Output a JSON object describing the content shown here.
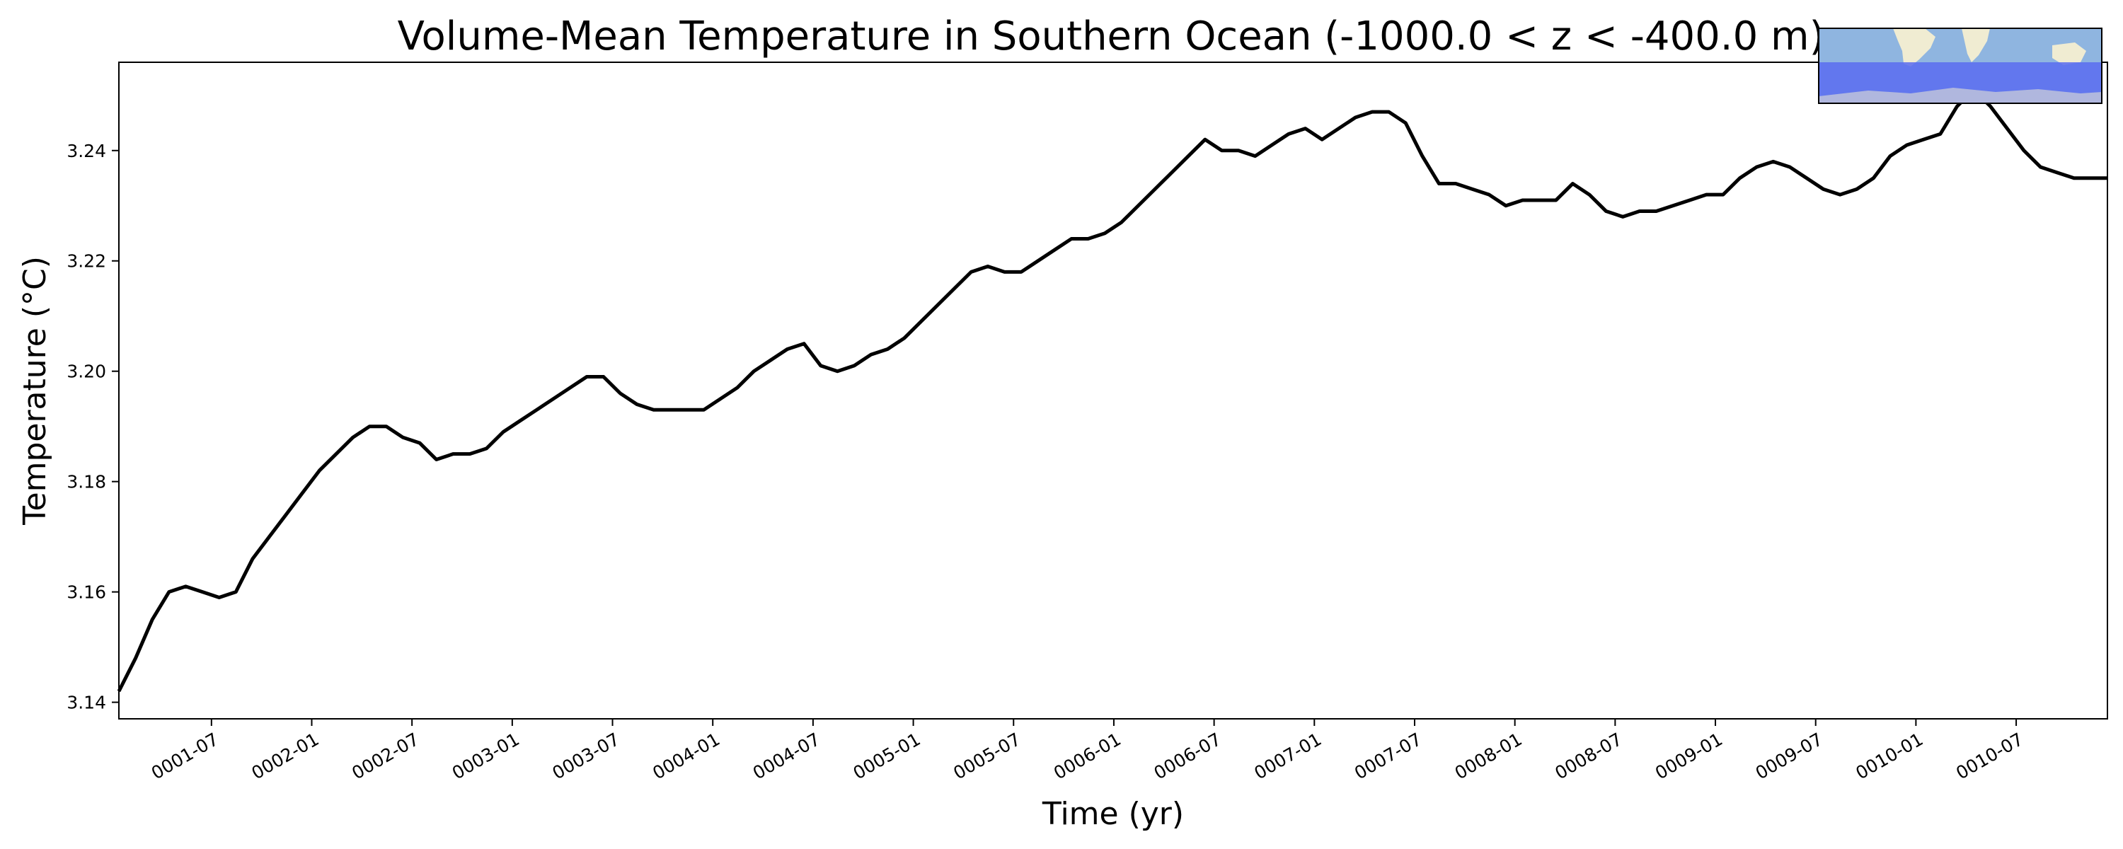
{
  "chart_data": {
    "type": "line",
    "title": "Volume-Mean Temperature in Southern Ocean (-1000.0 < z < -400.0 m)",
    "xlabel": "Time (yr)",
    "ylabel": "Temperature (°C)",
    "xlim": [
      "0001-01-15",
      "0010-12-15"
    ],
    "ylim": [
      3.137,
      3.256
    ],
    "yticks": [
      3.14,
      3.16,
      3.18,
      3.2,
      3.22,
      3.24
    ],
    "ytick_labels": [
      "3.14",
      "3.16",
      "3.18",
      "3.20",
      "3.22",
      "3.24"
    ],
    "xticks": [
      "0001-07",
      "0002-01",
      "0002-07",
      "0003-01",
      "0003-07",
      "0004-01",
      "0004-07",
      "0005-01",
      "0005-07",
      "0006-01",
      "0006-07",
      "0007-01",
      "0007-07",
      "0008-01",
      "0008-07",
      "0009-01",
      "0009-07",
      "0010-01",
      "0010-07"
    ],
    "grid": false,
    "legend": "none",
    "line_color": "#000000",
    "series": [
      {
        "x": [
          "0001-01",
          "0001-02",
          "0001-03",
          "0001-04",
          "0001-05",
          "0001-06",
          "0001-07",
          "0001-08",
          "0001-09",
          "0001-10",
          "0001-11",
          "0001-12",
          "0002-01",
          "0002-02",
          "0002-03",
          "0002-04",
          "0002-05",
          "0002-06",
          "0002-07",
          "0002-08",
          "0002-09",
          "0002-10",
          "0002-11",
          "0002-12",
          "0003-01",
          "0003-02",
          "0003-03",
          "0003-04",
          "0003-05",
          "0003-06",
          "0003-07",
          "0003-08",
          "0003-09",
          "0003-10",
          "0003-11",
          "0003-12",
          "0004-01",
          "0004-02",
          "0004-03",
          "0004-04",
          "0004-05",
          "0004-06",
          "0004-07",
          "0004-08",
          "0004-09",
          "0004-10",
          "0004-11",
          "0004-12",
          "0005-01",
          "0005-02",
          "0005-03",
          "0005-04",
          "0005-05",
          "0005-06",
          "0005-07",
          "0005-08",
          "0005-09",
          "0005-10",
          "0005-11",
          "0005-12",
          "0006-01",
          "0006-02",
          "0006-03",
          "0006-04",
          "0006-05",
          "0006-06",
          "0006-07",
          "0006-08",
          "0006-09",
          "0006-10",
          "0006-11",
          "0006-12",
          "0007-01",
          "0007-02",
          "0007-03",
          "0007-04",
          "0007-05",
          "0007-06",
          "0007-07",
          "0007-08",
          "0007-09",
          "0007-10",
          "0007-11",
          "0007-12",
          "0008-01",
          "0008-02",
          "0008-03",
          "0008-04",
          "0008-05",
          "0008-06",
          "0008-07",
          "0008-08",
          "0008-09",
          "0008-10",
          "0008-11",
          "0008-12",
          "0009-01",
          "0009-02",
          "0009-03",
          "0009-04",
          "0009-05",
          "0009-06",
          "0009-07",
          "0009-08",
          "0009-09",
          "0009-10",
          "0009-11",
          "0009-12",
          "0010-01",
          "0010-02",
          "0010-03",
          "0010-04",
          "0010-05",
          "0010-06",
          "0010-07",
          "0010-08",
          "0010-09",
          "0010-10",
          "0010-11",
          "0010-12"
        ],
        "values": [
          3.142,
          3.148,
          3.155,
          3.16,
          3.161,
          3.16,
          3.159,
          3.16,
          3.166,
          3.17,
          3.174,
          3.178,
          3.182,
          3.185,
          3.188,
          3.19,
          3.19,
          3.188,
          3.187,
          3.184,
          3.185,
          3.185,
          3.186,
          3.189,
          3.191,
          3.193,
          3.195,
          3.197,
          3.199,
          3.199,
          3.196,
          3.194,
          3.193,
          3.193,
          3.193,
          3.193,
          3.195,
          3.197,
          3.2,
          3.202,
          3.204,
          3.205,
          3.201,
          3.2,
          3.201,
          3.203,
          3.204,
          3.206,
          3.209,
          3.212,
          3.215,
          3.218,
          3.219,
          3.218,
          3.218,
          3.22,
          3.222,
          3.224,
          3.224,
          3.225,
          3.227,
          3.23,
          3.233,
          3.236,
          3.239,
          3.242,
          3.24,
          3.24,
          3.239,
          3.241,
          3.243,
          3.244,
          3.242,
          3.244,
          3.246,
          3.247,
          3.247,
          3.245,
          3.239,
          3.234,
          3.234,
          3.233,
          3.232,
          3.23,
          3.231,
          3.231,
          3.231,
          3.234,
          3.232,
          3.229,
          3.228,
          3.229,
          3.229,
          3.23,
          3.231,
          3.232,
          3.232,
          3.235,
          3.237,
          3.238,
          3.237,
          3.235,
          3.233,
          3.232,
          3.233,
          3.235,
          3.239,
          3.241,
          3.242,
          3.243,
          3.248,
          3.251,
          3.248,
          3.244,
          3.24,
          3.237,
          3.236,
          3.235,
          3.235,
          3.235
        ]
      }
    ]
  },
  "inset_map": {
    "ocean_color": "#8fb5e0",
    "land_color": "#f0ecd2",
    "region_color": "#5a6cf0"
  }
}
